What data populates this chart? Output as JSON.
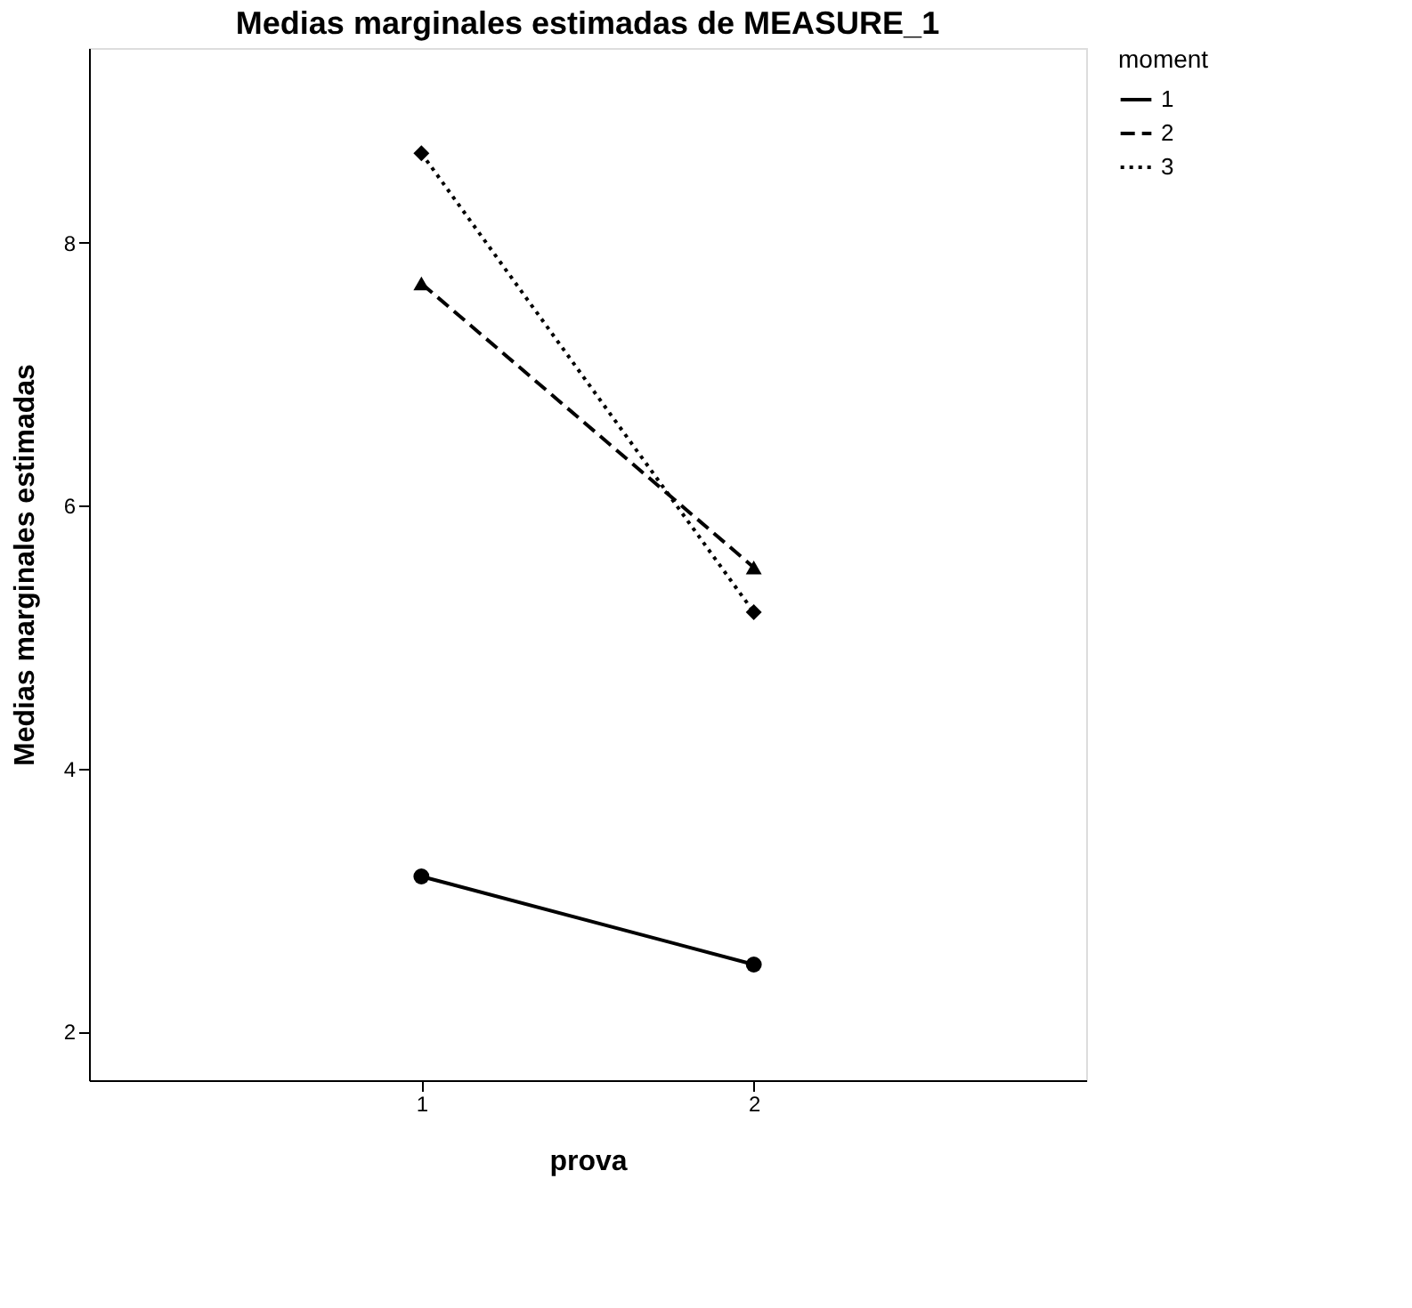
{
  "chart_data": {
    "type": "line",
    "title": "Medias marginales estimadas de MEASURE_1",
    "xlabel": "prova",
    "ylabel": "Medias marginales estimadas",
    "legend_title": "moment",
    "categories": [
      "1",
      "2"
    ],
    "series": [
      {
        "name": "1",
        "color": "#000000",
        "values": [
          3.18,
          2.51
        ],
        "marker": "circle",
        "line_style": "solid"
      },
      {
        "name": "2",
        "color": "#000000",
        "values": [
          7.69,
          5.53
        ],
        "marker": "triangle",
        "line_style": "dashed"
      },
      {
        "name": "3",
        "color": "#000000",
        "values": [
          8.68,
          5.19
        ],
        "marker": "diamond",
        "line_style": "dotted"
      }
    ],
    "ylim": [
      1.63,
      9.48
    ],
    "yticks": [
      2,
      4,
      6,
      8
    ],
    "grid": false,
    "legend": "top right"
  }
}
